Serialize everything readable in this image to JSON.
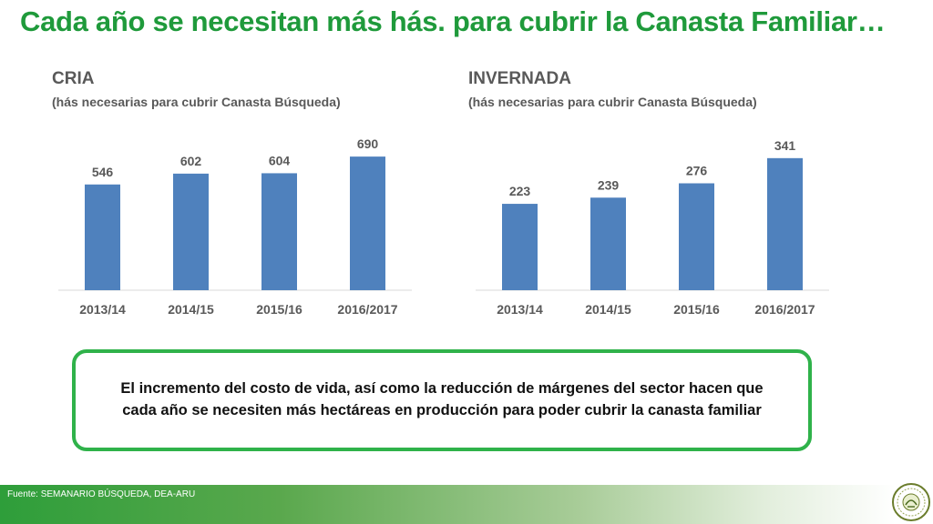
{
  "slide": {
    "title": "Cada año se necesitan más hás. para cubrir la Canasta Familiar…",
    "callout": "El incremento del costo de vida, así como la reducción de márgenes del sector hacen que cada año se necesiten más hectáreas en producción para poder cubrir la canasta familiar",
    "footer_source": "Fuente:  SEMANARIO BÚSQUEDA, DEA-ARU",
    "seal_icon": "association-seal-icon"
  },
  "colors": {
    "title": "#1f9a3b",
    "bar": "#4f81bd",
    "text": "#595959",
    "callout_border": "#2fb24a",
    "footer_green": "#2e9e3a"
  },
  "chart_data": [
    {
      "type": "bar",
      "title": "CRIA",
      "subtitle": "(hás necesarias para cubrir Canasta Búsqueda)",
      "categories": [
        "2013/14",
        "2014/15",
        "2015/16",
        "2016/2017"
      ],
      "values": [
        546,
        602,
        604,
        690
      ],
      "xlabel": "",
      "ylabel": "",
      "ylim": [
        0,
        700
      ],
      "grid": false,
      "legend": "none",
      "data_labels": true
    },
    {
      "type": "bar",
      "title": "INVERNADA",
      "subtitle": "(hás necesarias para cubrir Canasta Búsqueda)",
      "categories": [
        "2013/14",
        "2014/15",
        "2015/16",
        "2016/2017"
      ],
      "values": [
        223,
        239,
        276,
        341
      ],
      "xlabel": "",
      "ylabel": "",
      "ylim": [
        0,
        350
      ],
      "grid": false,
      "legend": "none",
      "data_labels": true
    }
  ]
}
